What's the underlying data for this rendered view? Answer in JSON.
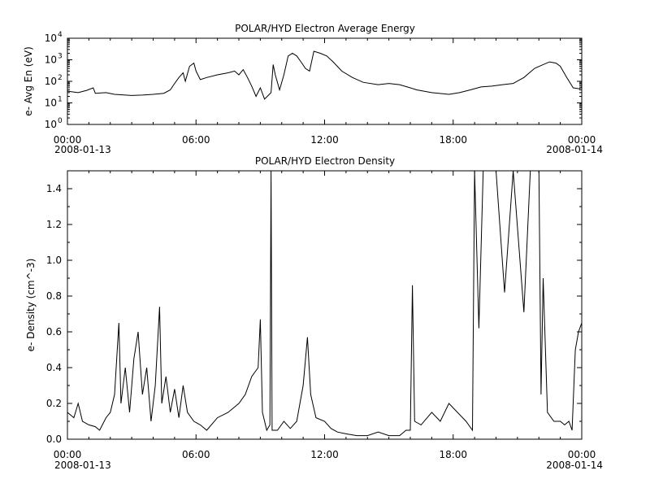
{
  "chart_data": [
    {
      "type": "line",
      "title": "POLAR/HYD  Electron Average Energy",
      "ylabel": "e- Avg En (eV)",
      "yscale": "log",
      "ylim": [
        1,
        10000
      ],
      "xlim_hours": [
        0,
        24
      ],
      "xticks": [
        {
          "hour": 0,
          "label": "00:00"
        },
        {
          "hour": 6,
          "label": "06:00"
        },
        {
          "hour": 12,
          "label": "12:00"
        },
        {
          "hour": 18,
          "label": "18:00"
        },
        {
          "hour": 24,
          "label": "00:00"
        }
      ],
      "start_date": "2008-01-13",
      "end_date": "2008-01-14",
      "yticks": [
        {
          "value": 1,
          "label": "10",
          "sup": "0"
        },
        {
          "value": 10,
          "label": "10",
          "sup": "1"
        },
        {
          "value": 100,
          "label": "10",
          "sup": "2"
        },
        {
          "value": 1000,
          "label": "10",
          "sup": "3"
        },
        {
          "value": 10000,
          "label": "10",
          "sup": "4"
        }
      ],
      "grid": false,
      "series": [
        {
          "color": "#000000",
          "points": [
            [
              0.0,
              35
            ],
            [
              0.5,
              30
            ],
            [
              0.9,
              38
            ],
            [
              1.2,
              50
            ],
            [
              1.3,
              28
            ],
            [
              1.8,
              30
            ],
            [
              2.2,
              25
            ],
            [
              3.0,
              22
            ],
            [
              3.5,
              23
            ],
            [
              4.0,
              25
            ],
            [
              4.5,
              28
            ],
            [
              4.8,
              40
            ],
            [
              5.0,
              80
            ],
            [
              5.2,
              150
            ],
            [
              5.4,
              250
            ],
            [
              5.5,
              100
            ],
            [
              5.7,
              500
            ],
            [
              5.9,
              700
            ],
            [
              6.0,
              300
            ],
            [
              6.2,
              120
            ],
            [
              6.5,
              150
            ],
            [
              7.0,
              200
            ],
            [
              7.5,
              250
            ],
            [
              7.8,
              300
            ],
            [
              8.0,
              200
            ],
            [
              8.2,
              350
            ],
            [
              8.4,
              150
            ],
            [
              8.6,
              60
            ],
            [
              8.8,
              20
            ],
            [
              9.0,
              50
            ],
            [
              9.2,
              15
            ],
            [
              9.5,
              30
            ],
            [
              9.6,
              600
            ],
            [
              9.7,
              200
            ],
            [
              9.9,
              40
            ],
            [
              10.1,
              200
            ],
            [
              10.3,
              1500
            ],
            [
              10.5,
              2000
            ],
            [
              10.7,
              1500
            ],
            [
              10.9,
              800
            ],
            [
              11.1,
              400
            ],
            [
              11.3,
              300
            ],
            [
              11.5,
              2500
            ],
            [
              11.8,
              2000
            ],
            [
              12.1,
              1500
            ],
            [
              12.4,
              800
            ],
            [
              12.8,
              300
            ],
            [
              13.3,
              150
            ],
            [
              13.8,
              90
            ],
            [
              14.5,
              70
            ],
            [
              15.0,
              80
            ],
            [
              15.5,
              70
            ],
            [
              16.0,
              50
            ],
            [
              16.3,
              40
            ],
            [
              17.0,
              30
            ],
            [
              17.8,
              25
            ],
            [
              18.3,
              30
            ],
            [
              18.8,
              40
            ],
            [
              19.3,
              55
            ],
            [
              19.8,
              60
            ],
            [
              20.3,
              70
            ],
            [
              20.8,
              80
            ],
            [
              21.3,
              150
            ],
            [
              21.8,
              400
            ],
            [
              22.2,
              600
            ],
            [
              22.5,
              800
            ],
            [
              22.8,
              700
            ],
            [
              23.0,
              500
            ],
            [
              23.3,
              150
            ],
            [
              23.6,
              50
            ],
            [
              23.9,
              45
            ],
            [
              24.0,
              55
            ]
          ]
        }
      ]
    },
    {
      "type": "line",
      "title": "POLAR/HYD  Electron Density",
      "ylabel": "e- Density (cm^-3)",
      "ylim": [
        0,
        1.5
      ],
      "xlim_hours": [
        0,
        24
      ],
      "xticks": [
        {
          "hour": 0,
          "label": "00:00"
        },
        {
          "hour": 6,
          "label": "06:00"
        },
        {
          "hour": 12,
          "label": "12:00"
        },
        {
          "hour": 18,
          "label": "18:00"
        },
        {
          "hour": 24,
          "label": "00:00"
        }
      ],
      "start_date": "2008-01-13",
      "end_date": "2008-01-14",
      "yticks": [
        {
          "value": 0.0,
          "label": "0.0"
        },
        {
          "value": 0.2,
          "label": "0.2"
        },
        {
          "value": 0.4,
          "label": "0.4"
        },
        {
          "value": 0.6,
          "label": "0.6"
        },
        {
          "value": 0.8,
          "label": "0.8"
        },
        {
          "value": 1.0,
          "label": "1.0"
        },
        {
          "value": 1.2,
          "label": "1.2"
        },
        {
          "value": 1.4,
          "label": "1.4"
        }
      ],
      "grid": false,
      "series": [
        {
          "color": "#000000",
          "points": [
            [
              0.0,
              0.15
            ],
            [
              0.3,
              0.12
            ],
            [
              0.5,
              0.2
            ],
            [
              0.7,
              0.1
            ],
            [
              1.0,
              0.08
            ],
            [
              1.3,
              0.07
            ],
            [
              1.5,
              0.05
            ],
            [
              1.8,
              0.12
            ],
            [
              2.0,
              0.15
            ],
            [
              2.2,
              0.25
            ],
            [
              2.4,
              0.65
            ],
            [
              2.5,
              0.2
            ],
            [
              2.7,
              0.4
            ],
            [
              2.9,
              0.15
            ],
            [
              3.1,
              0.45
            ],
            [
              3.3,
              0.6
            ],
            [
              3.5,
              0.25
            ],
            [
              3.7,
              0.4
            ],
            [
              3.9,
              0.1
            ],
            [
              4.1,
              0.3
            ],
            [
              4.3,
              0.74
            ],
            [
              4.4,
              0.2
            ],
            [
              4.6,
              0.35
            ],
            [
              4.8,
              0.15
            ],
            [
              5.0,
              0.28
            ],
            [
              5.2,
              0.12
            ],
            [
              5.4,
              0.3
            ],
            [
              5.6,
              0.15
            ],
            [
              5.9,
              0.1
            ],
            [
              6.2,
              0.08
            ],
            [
              6.5,
              0.05
            ],
            [
              7.0,
              0.12
            ],
            [
              7.5,
              0.15
            ],
            [
              8.0,
              0.2
            ],
            [
              8.3,
              0.25
            ],
            [
              8.6,
              0.35
            ],
            [
              8.9,
              0.4
            ],
            [
              9.0,
              0.67
            ],
            [
              9.1,
              0.15
            ],
            [
              9.3,
              0.05
            ],
            [
              9.45,
              0.08
            ],
            [
              9.5,
              1.5
            ],
            [
              9.55,
              0.05
            ],
            [
              9.8,
              0.05
            ],
            [
              10.1,
              0.1
            ],
            [
              10.4,
              0.06
            ],
            [
              10.7,
              0.1
            ],
            [
              11.0,
              0.3
            ],
            [
              11.2,
              0.57
            ],
            [
              11.35,
              0.25
            ],
            [
              11.6,
              0.12
            ],
            [
              12.0,
              0.1
            ],
            [
              12.3,
              0.06
            ],
            [
              12.6,
              0.04
            ],
            [
              13.0,
              0.03
            ],
            [
              13.5,
              0.02
            ],
            [
              14.0,
              0.02
            ],
            [
              14.5,
              0.04
            ],
            [
              15.0,
              0.02
            ],
            [
              15.5,
              0.02
            ],
            [
              15.8,
              0.05
            ],
            [
              16.0,
              0.05
            ],
            [
              16.1,
              0.86
            ],
            [
              16.2,
              0.1
            ],
            [
              16.5,
              0.08
            ],
            [
              17.0,
              0.15
            ],
            [
              17.4,
              0.1
            ],
            [
              17.8,
              0.2
            ],
            [
              18.2,
              0.15
            ],
            [
              18.6,
              0.1
            ],
            [
              18.9,
              0.05
            ],
            [
              19.0,
              1.5
            ],
            [
              19.2,
              0.62
            ],
            [
              19.4,
              1.5
            ],
            [
              20.0,
              1.5
            ],
            [
              20.4,
              0.82
            ],
            [
              20.8,
              1.5
            ],
            [
              21.3,
              0.71
            ],
            [
              21.6,
              1.5
            ],
            [
              22.0,
              1.5
            ],
            [
              22.1,
              0.25
            ],
            [
              22.2,
              0.9
            ],
            [
              22.4,
              0.15
            ],
            [
              22.7,
              0.1
            ],
            [
              23.0,
              0.1
            ],
            [
              23.2,
              0.08
            ],
            [
              23.4,
              0.1
            ],
            [
              23.55,
              0.05
            ],
            [
              23.7,
              0.5
            ],
            [
              23.85,
              0.6
            ],
            [
              24.0,
              0.65
            ]
          ]
        }
      ]
    }
  ]
}
